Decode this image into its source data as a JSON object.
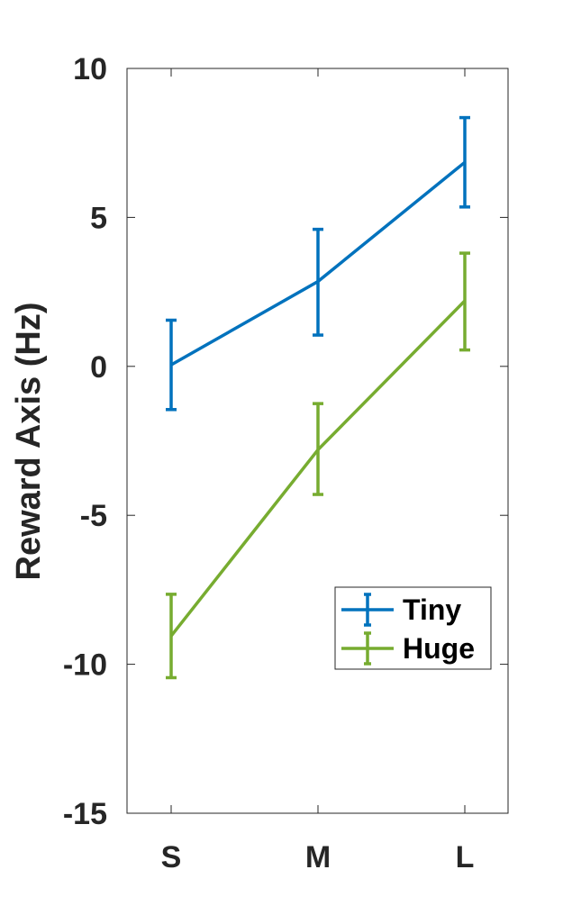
{
  "chart_data": {
    "type": "line",
    "categories": [
      "S",
      "M",
      "L"
    ],
    "ylabel": "Reward Axis (Hz)",
    "ylim": [
      -15,
      10
    ],
    "yticks": [
      10,
      5,
      0,
      -5,
      -10,
      -15
    ],
    "ytick_labels": [
      "10",
      "5",
      "0",
      "-5",
      "-10",
      "-15"
    ],
    "series": [
      {
        "name": "Tiny",
        "color": "#0072bd",
        "values": [
          0.05,
          2.85,
          6.85
        ],
        "err_low": [
          -1.45,
          1.05,
          5.35
        ],
        "err_high": [
          1.55,
          4.6,
          8.35
        ]
      },
      {
        "name": "Huge",
        "color": "#77ac30",
        "values": [
          -9.05,
          -2.8,
          2.2
        ],
        "err_low": [
          -10.45,
          -4.3,
          0.55
        ],
        "err_high": [
          -7.65,
          -1.25,
          3.8
        ]
      }
    ],
    "legend_position": "lower-right",
    "grid": false
  }
}
